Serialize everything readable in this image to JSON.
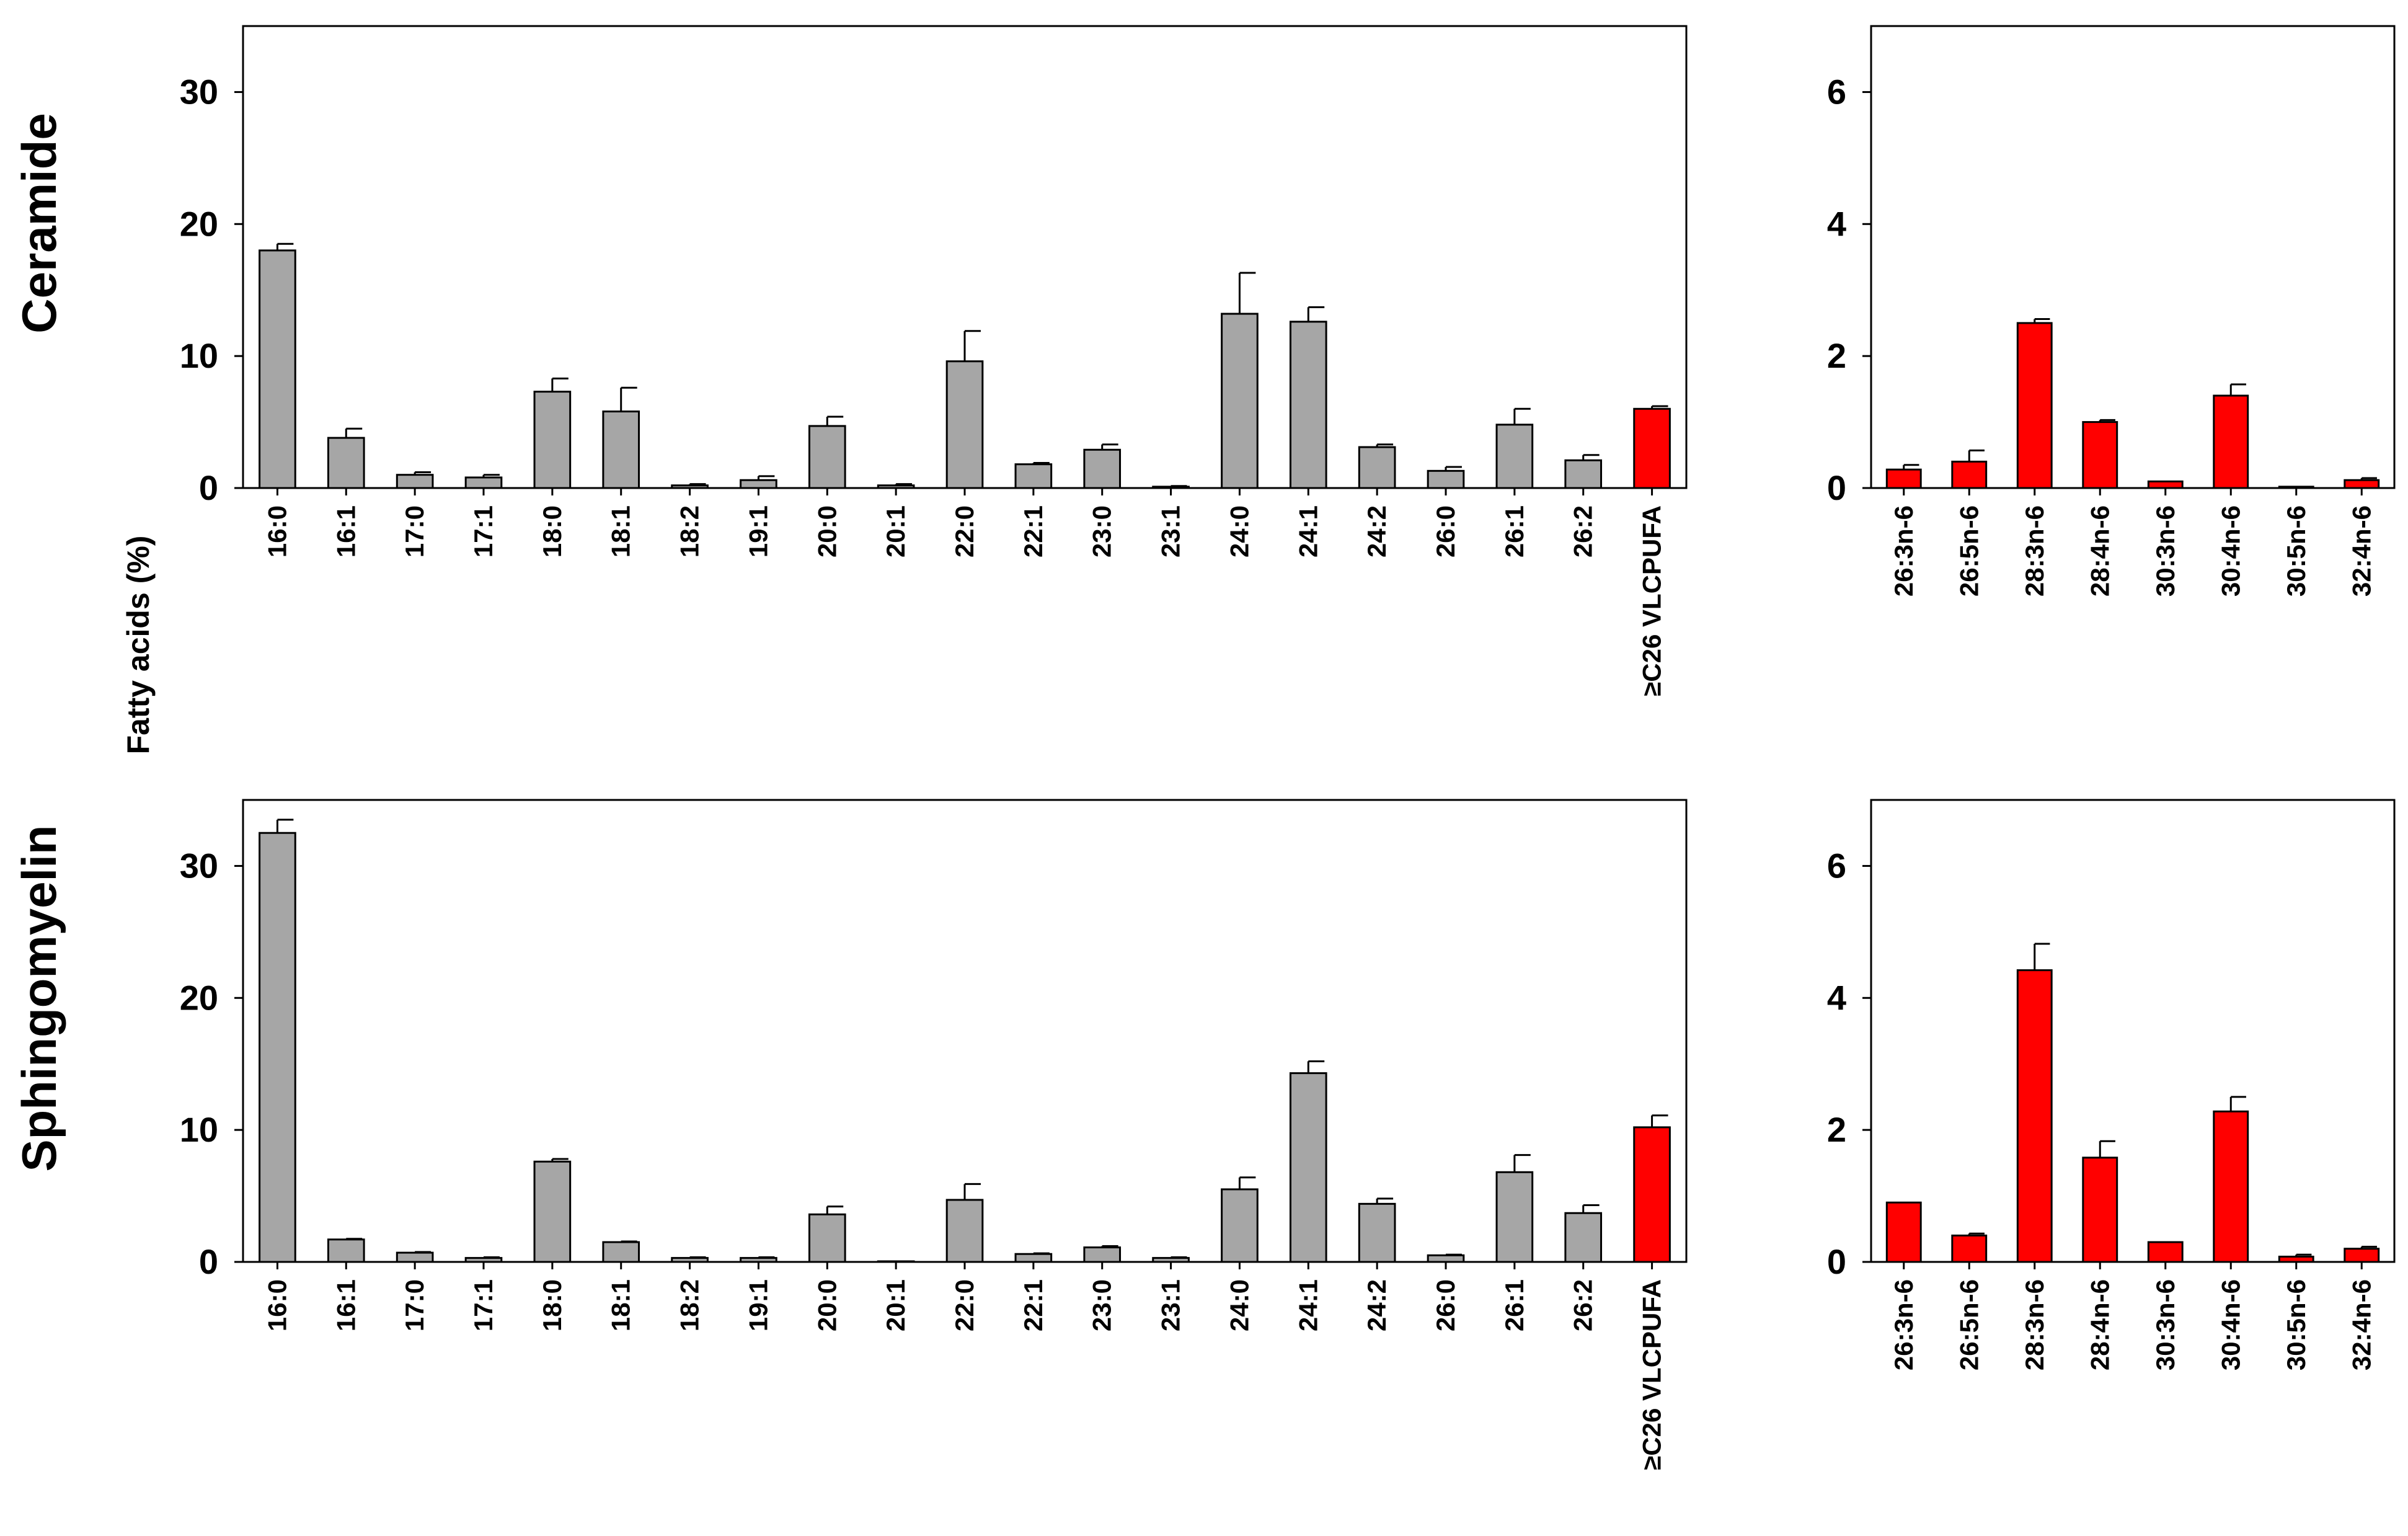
{
  "y_label": "Fatty acids (%)",
  "colors": {
    "gray_bar": "#a6a6a6",
    "red_bar": "#ff0000",
    "outline": "#000000",
    "background": "#ffffff"
  },
  "chart_data": [
    {
      "id": "ceramide-main",
      "type": "bar",
      "row_title": "Ceramide",
      "ylim": [
        0,
        35
      ],
      "yticks": [
        0,
        10,
        20,
        30
      ],
      "categories": [
        "16:0",
        "16:1",
        "17:0",
        "17:1",
        "18:0",
        "18:1",
        "18:2",
        "19:1",
        "20:0",
        "20:1",
        "22:0",
        "22:1",
        "23:0",
        "23:1",
        "24:0",
        "24:1",
        "24:2",
        "26:0",
        "26:1",
        "26:2",
        "≥C26 VLCPUFA"
      ],
      "values": [
        18.0,
        3.8,
        1.0,
        0.8,
        7.3,
        5.8,
        0.2,
        0.6,
        4.7,
        0.2,
        9.6,
        1.8,
        2.9,
        0.1,
        13.2,
        12.6,
        3.1,
        1.3,
        4.8,
        2.1,
        6.0
      ],
      "errors": [
        0.5,
        0.7,
        0.2,
        0.2,
        1.0,
        1.8,
        0.1,
        0.3,
        0.7,
        0.1,
        2.3,
        0.1,
        0.4,
        0.05,
        3.1,
        1.1,
        0.2,
        0.3,
        1.2,
        0.4,
        0.2
      ],
      "bar_colors": [
        "gray",
        "gray",
        "gray",
        "gray",
        "gray",
        "gray",
        "gray",
        "gray",
        "gray",
        "gray",
        "gray",
        "gray",
        "gray",
        "gray",
        "gray",
        "gray",
        "gray",
        "gray",
        "gray",
        "gray",
        "red"
      ]
    },
    {
      "id": "ceramide-vlcpufa",
      "type": "bar",
      "ylim": [
        0,
        7
      ],
      "yticks": [
        0,
        2,
        4,
        6
      ],
      "categories": [
        "26:3n-6",
        "26:5n-6",
        "28:3n-6",
        "28:4n-6",
        "30:3n-6",
        "30:4n-6",
        "30:5n-6",
        "32:4n-6"
      ],
      "values": [
        0.28,
        0.4,
        2.5,
        1.0,
        0.1,
        1.4,
        0.02,
        0.12
      ],
      "errors": [
        0.07,
        0.17,
        0.06,
        0.03,
        0.0,
        0.17,
        0.0,
        0.03
      ],
      "bar_colors": [
        "red",
        "red",
        "red",
        "red",
        "red",
        "red",
        "red",
        "red"
      ]
    },
    {
      "id": "sphingomyelin-main",
      "type": "bar",
      "row_title": "Sphingomyelin",
      "ylim": [
        0,
        35
      ],
      "yticks": [
        0,
        10,
        20,
        30
      ],
      "categories": [
        "16:0",
        "16:1",
        "17:0",
        "17:1",
        "18:0",
        "18:1",
        "18:2",
        "19:1",
        "20:0",
        "20:1",
        "22:0",
        "22:1",
        "23:0",
        "23:1",
        "24:0",
        "24:1",
        "24:2",
        "26:0",
        "26:1",
        "26:2",
        "≥C26 VLCPUFA"
      ],
      "values": [
        32.5,
        1.7,
        0.7,
        0.3,
        7.6,
        1.5,
        0.3,
        0.3,
        3.6,
        0.0,
        4.7,
        0.6,
        1.1,
        0.3,
        5.5,
        14.3,
        4.4,
        0.5,
        6.8,
        3.7,
        10.2
      ],
      "errors": [
        1.0,
        0.05,
        0.05,
        0.05,
        0.2,
        0.05,
        0.05,
        0.05,
        0.6,
        0.0,
        1.2,
        0.05,
        0.1,
        0.05,
        0.9,
        0.9,
        0.4,
        0.05,
        1.3,
        0.6,
        0.9
      ],
      "bar_colors": [
        "gray",
        "gray",
        "gray",
        "gray",
        "gray",
        "gray",
        "gray",
        "gray",
        "gray",
        "gray",
        "gray",
        "gray",
        "gray",
        "gray",
        "gray",
        "gray",
        "gray",
        "gray",
        "gray",
        "gray",
        "red"
      ]
    },
    {
      "id": "sphingomyelin-vlcpufa",
      "type": "bar",
      "ylim": [
        0,
        7
      ],
      "yticks": [
        0,
        2,
        4,
        6
      ],
      "categories": [
        "26:3n-6",
        "26:5n-6",
        "28:3n-6",
        "28:4n-6",
        "30:3n-6",
        "30:4n-6",
        "30:5n-6",
        "32:4n-6"
      ],
      "values": [
        0.9,
        0.4,
        4.42,
        1.58,
        0.3,
        2.28,
        0.08,
        0.2
      ],
      "errors": [
        0.0,
        0.03,
        0.4,
        0.25,
        0.0,
        0.22,
        0.03,
        0.03
      ],
      "bar_colors": [
        "red",
        "red",
        "red",
        "red",
        "red",
        "red",
        "red",
        "red"
      ]
    }
  ]
}
